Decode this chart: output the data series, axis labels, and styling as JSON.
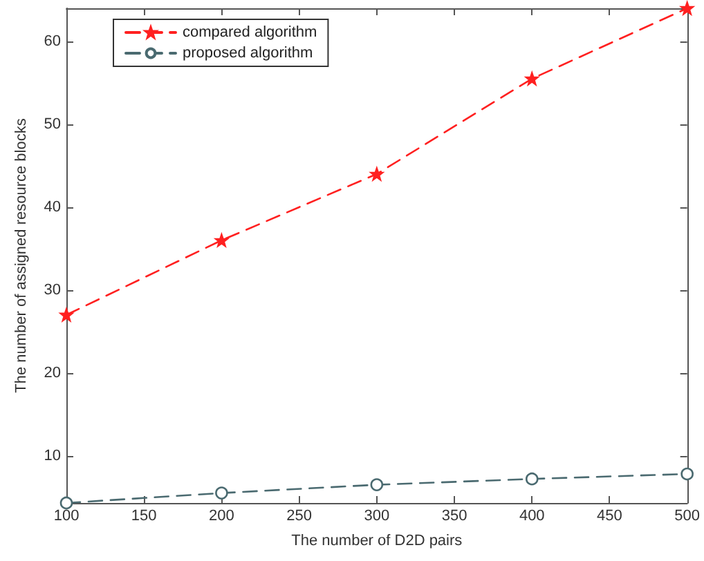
{
  "chart_data": {
    "type": "line",
    "xlabel": "The number of D2D pairs",
    "ylabel": "The number of assigned resource blocks",
    "x": [
      100,
      200,
      300,
      400,
      500
    ],
    "series": [
      {
        "name": "compared algorithm",
        "color": "#ff2020",
        "marker": "star",
        "values": [
          27,
          36,
          44,
          55.5,
          64
        ]
      },
      {
        "name": "proposed algorithm",
        "color": "#4a6a70",
        "marker": "circle",
        "values": [
          4.3,
          5.5,
          6.5,
          7.2,
          7.8
        ]
      }
    ],
    "xlim": [
      100,
      500
    ],
    "xticks": [
      100,
      150,
      200,
      250,
      300,
      350,
      400,
      450,
      500
    ],
    "ylim": [
      4.3,
      64
    ],
    "yticks": [
      10,
      20,
      30,
      40,
      50,
      60
    ],
    "grid": false,
    "legend": "top left",
    "line_style": "dashed"
  }
}
